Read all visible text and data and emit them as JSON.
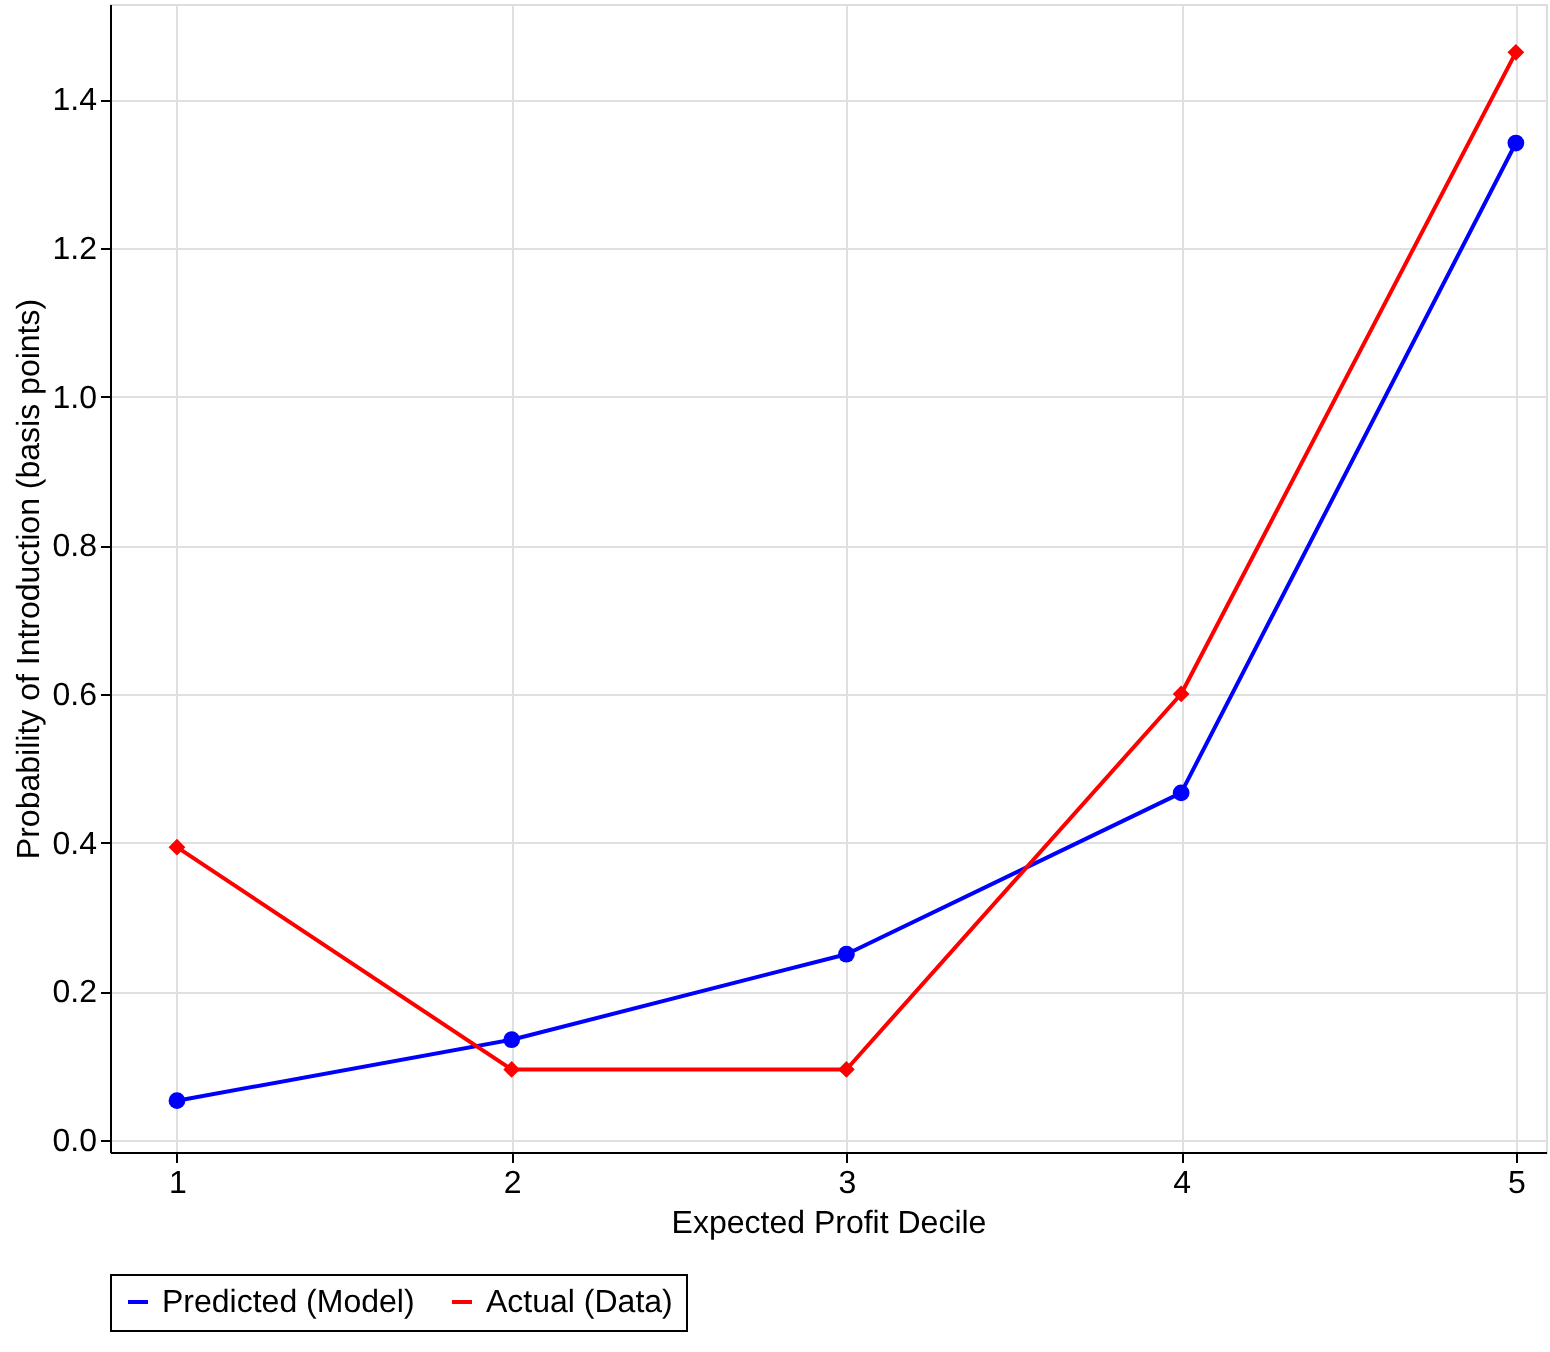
{
  "chart_data": {
    "type": "line",
    "xlabel": "Expected Profit Decile",
    "ylabel": "Probability of Introduction (basis points)",
    "x": [
      1,
      2,
      3,
      4,
      5
    ],
    "series": [
      {
        "name": "Predicted (Model)",
        "color": "#0000ff",
        "marker": "circle",
        "values": [
          0.053,
          0.135,
          0.25,
          0.467,
          1.341
        ]
      },
      {
        "name": "Actual (Data)",
        "color": "#ff0000",
        "marker": "diamond",
        "values": [
          0.394,
          0.095,
          0.095,
          0.6,
          1.463
        ]
      }
    ],
    "xlim": [
      0.8,
      5.09
    ],
    "xticks": [
      1,
      2,
      3,
      4,
      5
    ],
    "ylim": [
      -0.016,
      1.528
    ],
    "yticks": [
      {
        "value": 0,
        "label": "0.0"
      },
      0.2,
      0.4,
      0.6,
      0.8,
      {
        "value": 1,
        "label": "1.0"
      },
      1.2,
      1.4
    ],
    "grid": true,
    "legend": "bottom",
    "line_style": "solid"
  }
}
